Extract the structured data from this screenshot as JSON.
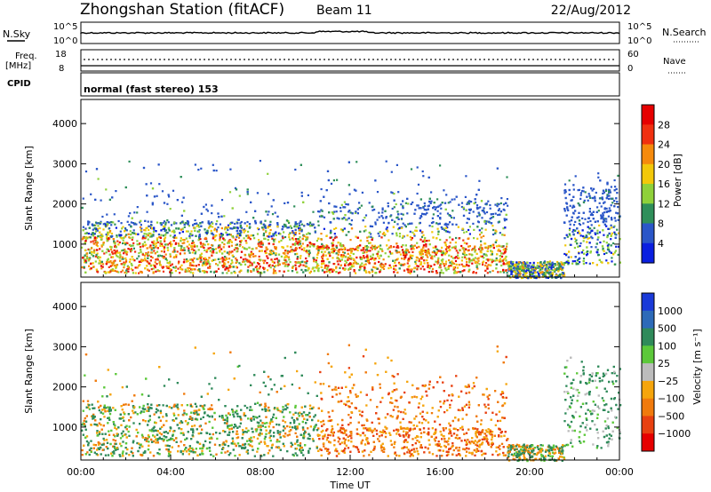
{
  "header": {
    "station": "Zhongshan Station (fitACF)",
    "beam": "Beam 11",
    "date": "22/Aug/2012"
  },
  "summary_panels": {
    "nsky_label": "N.Sky",
    "nsearch_label": "N.Search",
    "nsky_ticks": [
      "10^5",
      "10^0"
    ],
    "nsearch_ticks": [
      "10^5",
      "10^0"
    ],
    "freq_label_top": "Freq.",
    "freq_label_unit": "[MHz]",
    "freq_ticks": [
      "18",
      "8"
    ],
    "nave_label": "Nave",
    "nave_ticks": [
      "60",
      "0"
    ],
    "cpid_label": "CPID",
    "cpid_value": "normal (fast stereo) 153"
  },
  "chart_data": [
    {
      "type": "heatmap",
      "name": "Power",
      "ylabel": "Slant Range [km]",
      "xlabel": "",
      "xlim": [
        0,
        24
      ],
      "ylim": [
        180,
        4600
      ],
      "yticks": [
        "1000",
        "2000",
        "3000",
        "4000"
      ],
      "colorbar": {
        "label": "Power [dB]",
        "ticks": [
          "4",
          "8",
          "12",
          "16",
          "20",
          "24",
          "28"
        ],
        "colors": [
          "#0a1fe0",
          "#2a56c8",
          "#2f8f5a",
          "#8fd13a",
          "#f2c80a",
          "#f58a0c",
          "#f03010",
          "#e60000"
        ]
      },
      "scatter_regions": [
        {
          "t": [
            0,
            7.5
          ],
          "range": [
            300,
            1000
          ],
          "level": "high"
        },
        {
          "t": [
            7.5,
            10.5
          ],
          "range": [
            300,
            800
          ],
          "level": "high"
        },
        {
          "t": [
            10.5,
            19
          ],
          "range": [
            1000,
            1800
          ],
          "level": "medium"
        },
        {
          "t": [
            12,
            15.5
          ],
          "range": [
            900,
            1500
          ],
          "level": "high"
        },
        {
          "t": [
            17,
            21
          ],
          "range": [
            200,
            500
          ],
          "level": "medium"
        },
        {
          "t": [
            22,
            24
          ],
          "range": [
            500,
            2800
          ],
          "level": "low"
        }
      ]
    },
    {
      "type": "heatmap",
      "name": "Velocity",
      "ylabel": "Slant Range [km]",
      "xlabel": "Time UT",
      "xlim": [
        0,
        24
      ],
      "ylim": [
        180,
        4600
      ],
      "xticks": [
        "00:00",
        "04:00",
        "08:00",
        "12:00",
        "16:00",
        "20:00",
        "00:00"
      ],
      "yticks": [
        "1000",
        "2000",
        "3000",
        "4000"
      ],
      "colorbar": {
        "label": "Velocity [m s⁻¹]",
        "ticks": [
          "1000",
          "500",
          "100",
          "25",
          "−25",
          "−100",
          "−500",
          "−1000"
        ],
        "colors": [
          "#1a3ad8",
          "#2d6ab8",
          "#2f8a5a",
          "#5cc83a",
          "#bcbcbc",
          "#f5a50c",
          "#f07a0c",
          "#e84010",
          "#e60000"
        ]
      },
      "scatter_regions": [
        {
          "t": [
            0,
            7.5
          ],
          "range": [
            300,
            1000
          ],
          "level": "negative"
        },
        {
          "t": [
            10.5,
            16
          ],
          "range": [
            800,
            2000
          ],
          "level": "negative"
        },
        {
          "t": [
            16,
            21
          ],
          "range": [
            200,
            800
          ],
          "level": "mixed"
        },
        {
          "t": [
            22,
            24
          ],
          "range": [
            500,
            2800
          ],
          "level": "positive"
        }
      ]
    }
  ]
}
